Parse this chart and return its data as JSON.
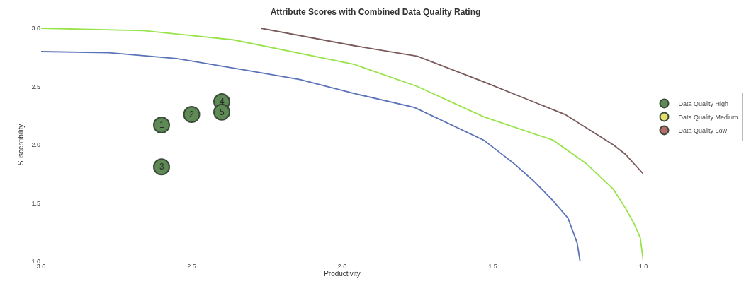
{
  "chart_data": {
    "type": "scatter",
    "title": "Attribute Scores with Combined Data Quality Rating",
    "xlabel": "Productivity",
    "ylabel": "Susceptibility",
    "xlim": [
      3.0,
      1.0
    ],
    "ylim": [
      1.0,
      3.0
    ],
    "xticks": [
      {
        "value": 3,
        "label": "3.0"
      },
      2.5,
      {
        "value": 2,
        "label": "2.0"
      },
      1.5,
      {
        "value": 1,
        "label": "1.0"
      }
    ],
    "yticks": [
      {
        "value": 1,
        "label": "1.0"
      },
      1.5,
      {
        "value": 2,
        "label": "2.0"
      },
      2.5,
      {
        "value": 3,
        "label": "3.0"
      }
    ],
    "annotations": [
      {
        "text": "1",
        "x": 2.6,
        "y": 2.17
      },
      {
        "text": "2",
        "x": 2.5,
        "y": 2.26
      },
      {
        "text": "3",
        "x": 2.6,
        "y": 1.81
      },
      {
        "text": "4",
        "x": 2.4,
        "y": 2.37
      },
      {
        "text": "5",
        "x": 2.4,
        "y": 2.28
      }
    ],
    "legend": "right",
    "marker": "circle",
    "series": [
      {
        "name": "Data Quality High",
        "color": "#5e8a55",
        "x": [
          2.6,
          2.5,
          2.6,
          2.4,
          2.4
        ],
        "values": [
          2.17,
          2.26,
          1.81,
          2.37,
          2.28
        ]
      },
      {
        "name": "Data Quality Medium",
        "color": "#e6df6a"
      },
      {
        "name": "Data Quality Low",
        "color": "#b86a6a"
      },
      {
        "type": "line",
        "color": "#5a72b8",
        "marker": "none",
        "x": [
          3.0,
          2.775,
          2.55,
          2.32,
          2.14,
          1.96,
          1.76,
          1.53,
          1.43,
          1.36,
          1.3,
          1.25,
          1.22,
          1.21
        ],
        "values": [
          2.8,
          2.79,
          2.74,
          2.64,
          2.56,
          2.44,
          2.32,
          2.04,
          1.84,
          1.68,
          1.52,
          1.37,
          1.16,
          1.0
        ]
      },
      {
        "type": "line",
        "color": "#99e34a",
        "marker": "none",
        "x": [
          3.0,
          2.66,
          2.36,
          1.96,
          1.75,
          1.53,
          1.3,
          1.19,
          1.1,
          1.06,
          1.03,
          1.01,
          1.0
        ],
        "values": [
          3.0,
          2.98,
          2.9,
          2.69,
          2.5,
          2.24,
          2.04,
          1.84,
          1.62,
          1.46,
          1.32,
          1.2,
          1.0
        ]
      },
      {
        "type": "line",
        "color": "#7a5a5a",
        "marker": "none",
        "x": [
          2.27,
          1.96,
          1.75,
          1.53,
          1.26,
          1.1,
          1.06,
          1.0
        ],
        "values": [
          3.0,
          2.85,
          2.76,
          2.54,
          2.26,
          2.0,
          1.92,
          1.75
        ]
      }
    ]
  }
}
